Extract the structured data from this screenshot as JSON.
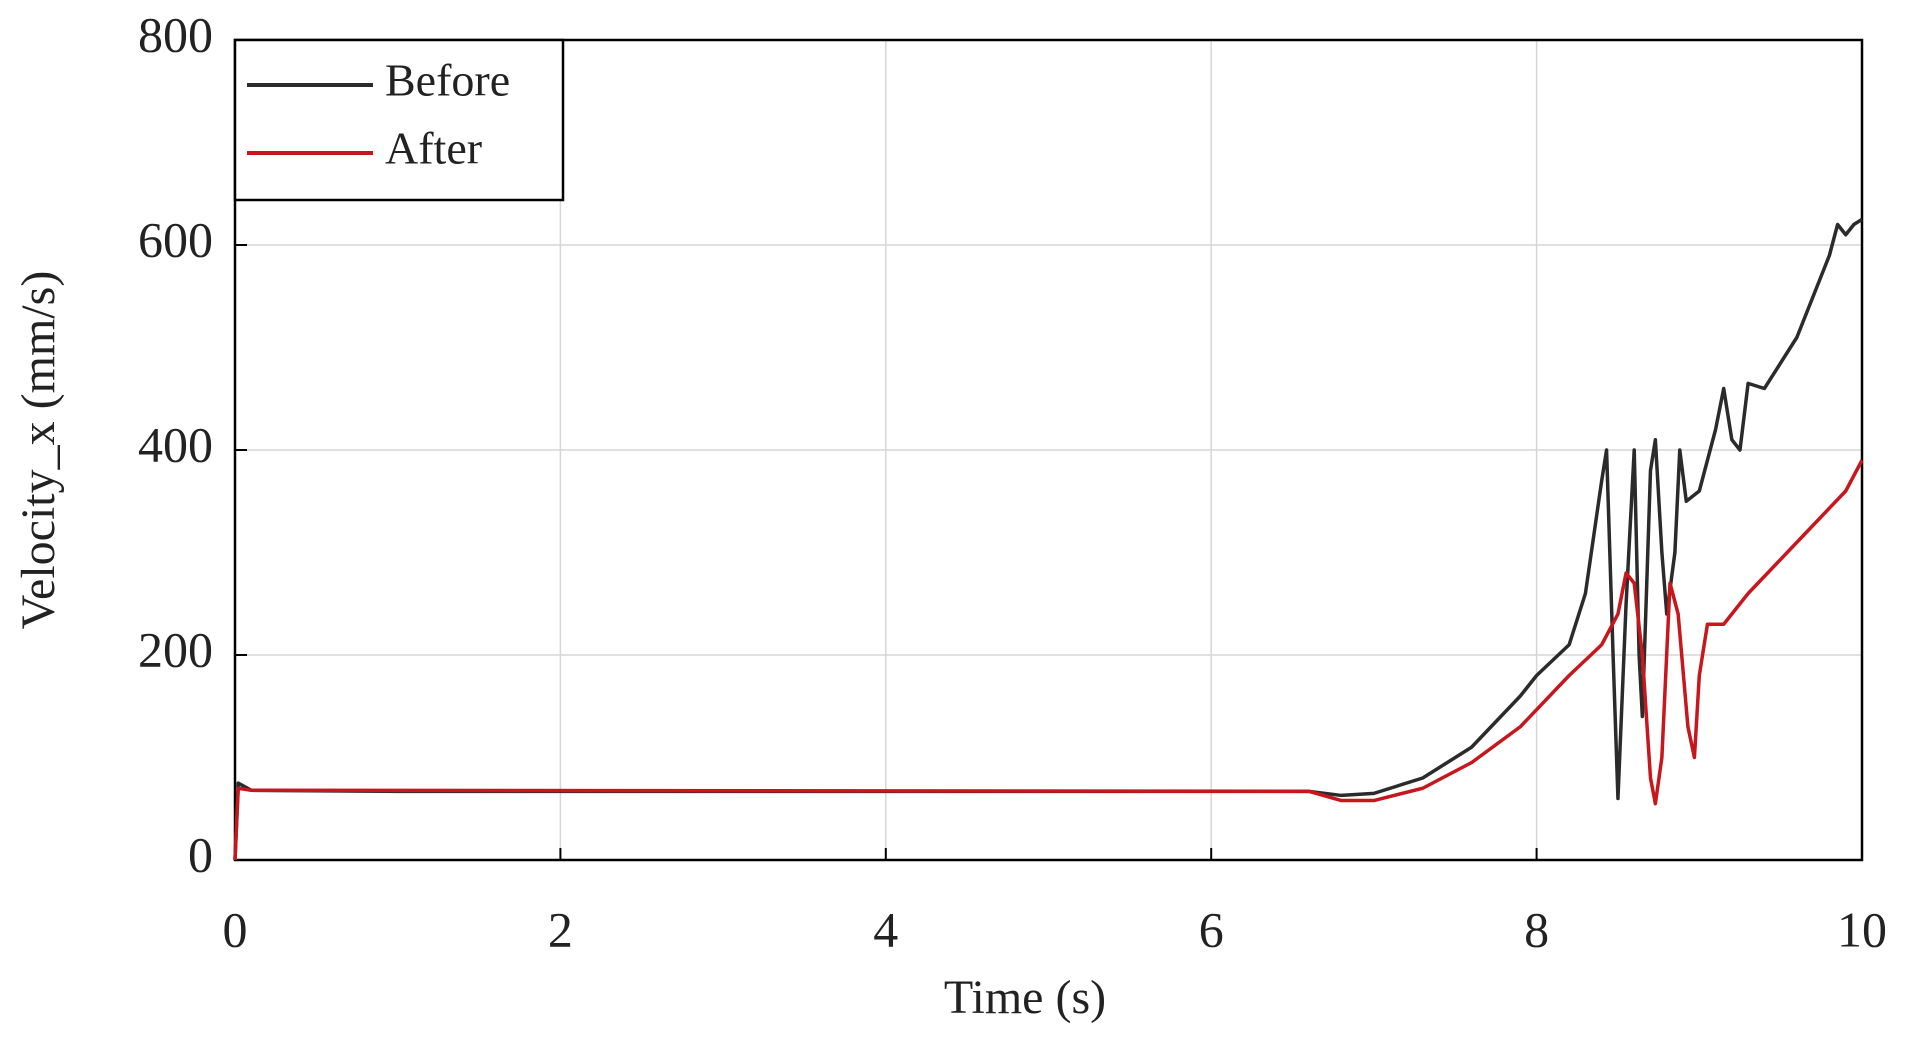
{
  "chart_data": {
    "type": "line",
    "xlabel": "Time (s)",
    "ylabel": "Velocity_x (mm/s)",
    "xlim": [
      0,
      10
    ],
    "xticks": [
      0,
      2,
      4,
      6,
      8,
      10
    ],
    "ylim": [
      0,
      800
    ],
    "yticks": [
      0,
      200,
      400,
      600,
      800
    ],
    "grid": true,
    "legend": "upper left",
    "series": [
      {
        "name": "Before",
        "color": "#2b2b2b",
        "x": [
          0,
          0.02,
          0.1,
          1,
          6.6,
          6.8,
          7,
          7.3,
          7.6,
          7.9,
          8.0,
          8.2,
          8.3,
          8.4,
          8.43,
          8.47,
          8.5,
          8.55,
          8.6,
          8.63,
          8.65,
          8.7,
          8.73,
          8.77,
          8.8,
          8.85,
          8.88,
          8.92,
          9.0,
          9.1,
          9.15,
          9.2,
          9.25,
          9.3,
          9.4,
          9.6,
          9.8,
          9.85,
          9.9,
          9.95,
          10
        ],
        "values": [
          0,
          75,
          68,
          67,
          67,
          63,
          65,
          80,
          110,
          160,
          180,
          210,
          260,
          370,
          400,
          200,
          60,
          250,
          400,
          200,
          140,
          380,
          410,
          300,
          240,
          300,
          400,
          350,
          360,
          420,
          460,
          410,
          400,
          465,
          460,
          510,
          590,
          620,
          610,
          620,
          625
        ]
      },
      {
        "name": "After",
        "color": "#c8161d",
        "x": [
          0,
          0.02,
          0.1,
          6.6,
          6.8,
          7,
          7.3,
          7.6,
          7.9,
          8.2,
          8.4,
          8.5,
          8.55,
          8.6,
          8.65,
          8.7,
          8.73,
          8.77,
          8.82,
          8.87,
          8.93,
          8.97,
          9.0,
          9.05,
          9.15,
          9.3,
          9.6,
          9.9,
          10
        ],
        "values": [
          0,
          70,
          68,
          67,
          58,
          58,
          70,
          95,
          130,
          180,
          210,
          240,
          280,
          270,
          200,
          80,
          55,
          100,
          270,
          240,
          130,
          100,
          180,
          230,
          230,
          260,
          310,
          360,
          390
        ]
      }
    ]
  }
}
